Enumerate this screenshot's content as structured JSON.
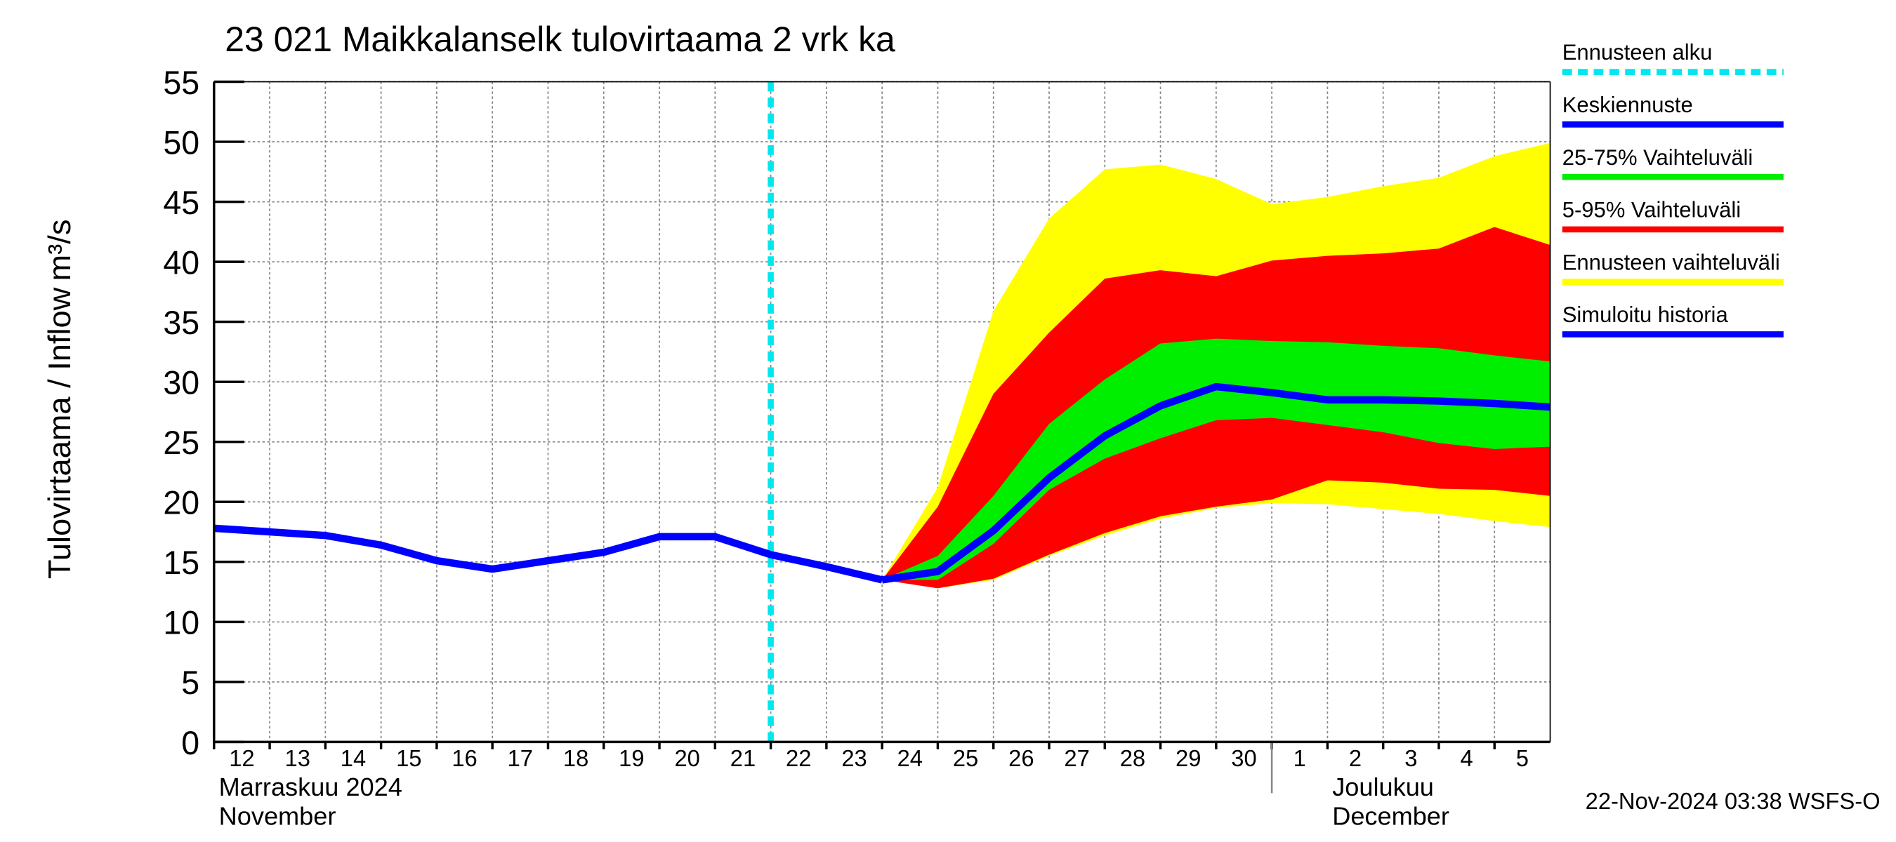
{
  "chart_data": {
    "type": "line",
    "title": "23 021 Maikkalanselk tulovirtaama 2 vrk ka",
    "y_label": "Tulovirtaama / Inflow",
    "y_unit": "m³/s",
    "footer": "22-Nov-2024 03:38 WSFS-O",
    "xlim": [
      0,
      24
    ],
    "ylim": [
      0,
      55
    ],
    "yticks": [
      0,
      5,
      10,
      15,
      20,
      25,
      30,
      35,
      40,
      45,
      50,
      55
    ],
    "xticks": [
      {
        "value": 0,
        "label": "12"
      },
      {
        "value": 1,
        "label": "13"
      },
      {
        "value": 2,
        "label": "14"
      },
      {
        "value": 3,
        "label": "15"
      },
      {
        "value": 4,
        "label": "16"
      },
      {
        "value": 5,
        "label": "17"
      },
      {
        "value": 6,
        "label": "18"
      },
      {
        "value": 7,
        "label": "19"
      },
      {
        "value": 8,
        "label": "20"
      },
      {
        "value": 9,
        "label": "21"
      },
      {
        "value": 10,
        "label": "22"
      },
      {
        "value": 11,
        "label": "23"
      },
      {
        "value": 12,
        "label": "24"
      },
      {
        "value": 13,
        "label": "25"
      },
      {
        "value": 14,
        "label": "26"
      },
      {
        "value": 15,
        "label": "27"
      },
      {
        "value": 16,
        "label": "28"
      },
      {
        "value": 17,
        "label": "29"
      },
      {
        "value": 18,
        "label": "30"
      },
      {
        "value": 19,
        "label": "1"
      },
      {
        "value": 20,
        "label": "2"
      },
      {
        "value": 21,
        "label": "3"
      },
      {
        "value": 22,
        "label": "4"
      },
      {
        "value": 23,
        "label": "5"
      }
    ],
    "grid": true,
    "month_labels": [
      {
        "x": 0,
        "lines": [
          "Marraskuu 2024",
          "November"
        ]
      },
      {
        "x": 19,
        "lines": [
          "Joulukuu",
          "December"
        ]
      }
    ],
    "forecast_start": {
      "name": "Ennusteen alku",
      "color": "#00e8ee",
      "x": 10
    },
    "bands": [
      {
        "name": "Ennusteen vaihteluväli",
        "color": "#ffff00",
        "x": [
          12,
          13,
          14,
          15,
          16,
          17,
          18,
          19,
          20,
          21,
          22,
          23,
          24
        ],
        "upper": [
          13.5,
          21.2,
          35.9,
          43.6,
          47.7,
          48.1,
          46.9,
          44.8,
          45.4,
          46.3,
          47,
          48.8,
          49.9
        ],
        "lower": [
          13.5,
          12.8,
          13.5,
          15.5,
          17.2,
          18.6,
          19.5,
          19.9,
          19.8,
          19.4,
          19,
          18.4,
          17.9
        ]
      },
      {
        "name": "5-95% Vaihteluväli",
        "color": "#ff0000",
        "x": [
          12,
          13,
          14,
          15,
          16,
          17,
          18,
          19,
          20,
          21,
          22,
          23,
          24
        ],
        "upper": [
          13.5,
          19.6,
          29,
          34.1,
          38.6,
          39.3,
          38.8,
          40.1,
          40.5,
          40.7,
          41.1,
          42.9,
          41.4
        ],
        "lower": [
          13.5,
          12.8,
          13.6,
          15.6,
          17.4,
          18.8,
          19.6,
          20.2,
          21.8,
          21.6,
          21.1,
          21,
          20.5
        ]
      },
      {
        "name": "25-75% Vaihteluväli",
        "color": "#00ee00",
        "x": [
          12,
          13,
          14,
          15,
          16,
          17,
          18,
          19,
          20,
          21,
          22,
          23,
          24
        ],
        "upper": [
          13.5,
          15.5,
          20.5,
          26.5,
          30.2,
          33.2,
          33.6,
          33.4,
          33.3,
          33,
          32.8,
          32.2,
          31.7
        ],
        "lower": [
          13.5,
          13.5,
          16.5,
          21,
          23.6,
          25.3,
          26.8,
          27,
          26.4,
          25.8,
          24.9,
          24.4,
          24.6
        ]
      }
    ],
    "series": [
      {
        "name": "Keskiennuste",
        "color": "#0000ff",
        "x": [
          12,
          13,
          14,
          15,
          16,
          17,
          18,
          19,
          20,
          21,
          22,
          23,
          24
        ],
        "values": [
          13.5,
          14.2,
          17.6,
          22,
          25.5,
          28,
          29.6,
          29.1,
          28.5,
          28.5,
          28.4,
          28.2,
          27.9
        ]
      },
      {
        "name": "Simuloitu historia",
        "color": "#0000ff",
        "x": [
          0,
          1,
          2,
          3,
          4,
          5,
          6,
          7,
          8,
          9,
          10,
          11,
          12
        ],
        "values": [
          17.8,
          17.5,
          17.2,
          16.4,
          15.1,
          14.4,
          15.1,
          15.8,
          17.1,
          17.1,
          15.6,
          14.6,
          13.5
        ]
      }
    ]
  }
}
